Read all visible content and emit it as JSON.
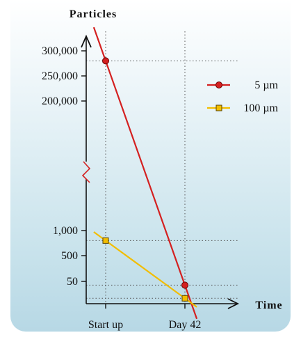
{
  "chart_data": {
    "type": "line",
    "ylabel": "Particles",
    "xlabel": "Time",
    "categories": [
      "Start up",
      "Day 42"
    ],
    "y_scale": "broken",
    "y_upper_ticks": [
      "300,000",
      "250,000",
      "200,000"
    ],
    "y_lower_ticks": [
      "1,000",
      "500",
      "50"
    ],
    "grid": "dotted guides at data points",
    "legend_position": "right",
    "series": [
      {
        "name": "5 µm",
        "values": [
          280000,
          40
        ],
        "color": "#d42020",
        "marker": "circle"
      },
      {
        "name": "100 µm",
        "values": [
          800,
          5
        ],
        "color": "#f2bd00",
        "marker": "square"
      }
    ]
  }
}
